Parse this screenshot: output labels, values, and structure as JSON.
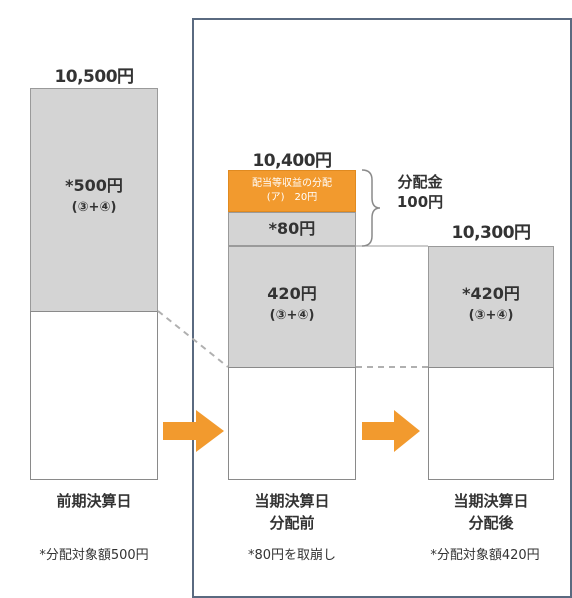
{
  "columns": [
    {
      "amount_label": "10,500円",
      "gray_text": "*500円",
      "gray_sub": "(③+④)",
      "bottom_label": "前期決算日",
      "note": "*分配対象額500円"
    },
    {
      "amount_label": "10,400円",
      "orange_text": "配当等収益の分配\n(ア)　20円",
      "small_gray_text": "*80円",
      "gray_text": "420円",
      "gray_sub": "(③+④)",
      "bottom_label": "当期決算日\n分配前",
      "note": "*80円を取崩し"
    },
    {
      "amount_label": "10,300円",
      "gray_text": "*420円",
      "gray_sub": "(③+④)",
      "bottom_label": "当期決算日\n分配後",
      "note": "*分配対象額420円"
    }
  ],
  "distribution": {
    "label": "分配金",
    "amount": "100円"
  },
  "colors": {
    "gray_fill": "#d4d4d4",
    "orange_fill": "#f29a2e",
    "arrow_orange": "#f29a2e",
    "panel_border": "#5a6a80"
  }
}
